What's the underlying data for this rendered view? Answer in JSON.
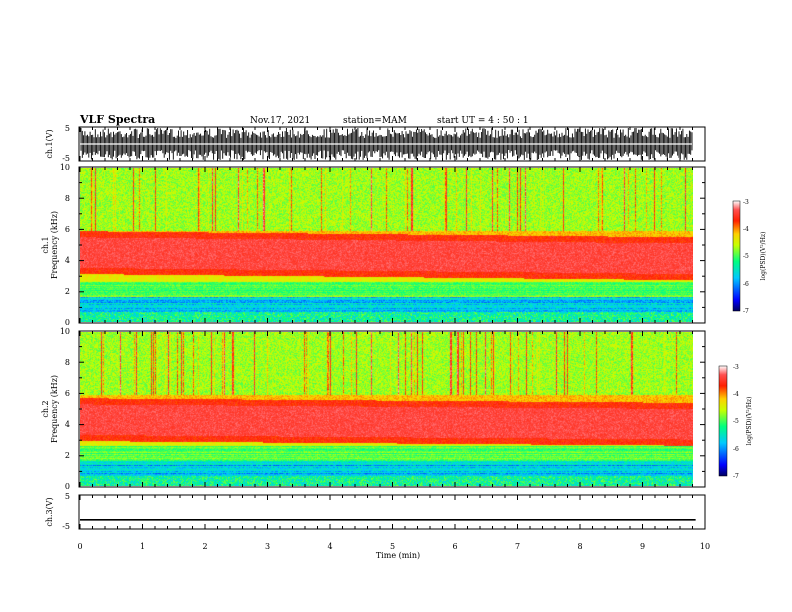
{
  "header": {
    "title": "VLF Spectra",
    "date": "Nov.17, 2021",
    "station": "station=MAM",
    "start": "start  UT =   4 : 50 : 1"
  },
  "chart_data": [
    {
      "type": "line",
      "panel": "ch1-waveform",
      "ylabel": "ch.1(V)",
      "ylim": [
        -5,
        5
      ],
      "yticks": [
        "5",
        "-5"
      ],
      "xlim": [
        0,
        10
      ],
      "description_of_signal": "dense bursts"
    },
    {
      "type": "heatmap",
      "panel": "ch1-spectrogram",
      "ylabel_line1": "ch.1",
      "ylabel_line2": "Frequency (kHz)",
      "ylim": [
        0,
        10
      ],
      "yticks": [
        "0",
        "2",
        "4",
        "6",
        "8",
        "10"
      ],
      "xlim": [
        0,
        9.85
      ],
      "band_center_khz_start": 4.5,
      "band_center_khz_end": 4.1,
      "colorbar": {
        "label": "log(PSD)(V²/Hz)",
        "range": [
          -7,
          -3
        ],
        "ticks": [
          "-3",
          "-4",
          "-5",
          "-6",
          "-7"
        ]
      }
    },
    {
      "type": "heatmap",
      "panel": "ch2-spectrogram",
      "ylabel_line1": "ch.2",
      "ylabel_line2": "Frequency (kHz)",
      "ylim": [
        0,
        10
      ],
      "yticks": [
        "0",
        "2",
        "4",
        "6",
        "8",
        "10"
      ],
      "xlim": [
        0,
        9.85
      ],
      "band_center_khz_start": 4.3,
      "band_center_khz_end": 4.0,
      "colorbar": {
        "label": "log(PSD)(V²/Hz)",
        "range": [
          -7,
          -3
        ],
        "ticks": [
          "-3",
          "-4",
          "-5",
          "-6",
          "-7"
        ]
      }
    },
    {
      "type": "line",
      "panel": "ch3-waveform",
      "ylabel": "ch.3(V)",
      "ylim": [
        -5,
        5
      ],
      "yticks": [
        "5",
        "-5"
      ],
      "x": [
        0,
        9.85
      ],
      "y": [
        -2.3,
        -2.3
      ],
      "xlim": [
        0,
        10
      ],
      "xticks": [
        "0",
        "1",
        "2",
        "3",
        "4",
        "5",
        "6",
        "7",
        "8",
        "9",
        "10"
      ],
      "xlabel": "Time (min)"
    }
  ]
}
